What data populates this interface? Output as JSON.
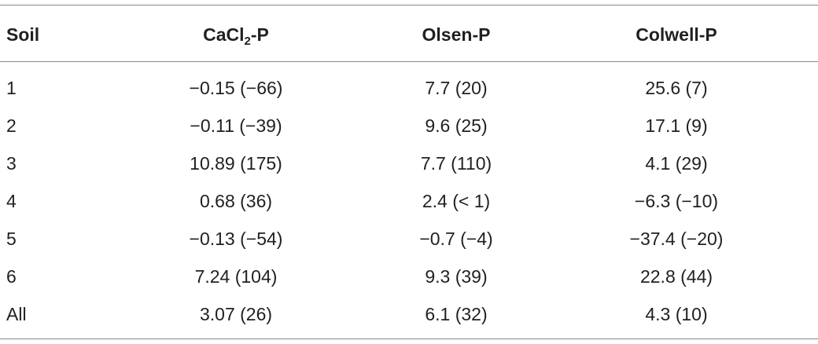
{
  "table": {
    "header": [
      "Soil",
      {
        "base": "CaCl",
        "sub": "2",
        "rest": "-P"
      },
      "Olsen-P",
      "Colwell-P"
    ],
    "rows": [
      [
        "1",
        "−0.15 (−66)",
        "7.7 (20)",
        "25.6 (7)"
      ],
      [
        "2",
        "−0.11 (−39)",
        "9.6 (25)",
        "17.1 (9)"
      ],
      [
        "3",
        "10.89 (175)",
        "7.7 (110)",
        "4.1 (29)"
      ],
      [
        "4",
        "0.68 (36)",
        "2.4 (< 1)",
        "−6.3 (−10)"
      ],
      [
        "5",
        "−0.13 (−54)",
        "−0.7 (−4)",
        "−37.4 (−20)"
      ],
      [
        "6",
        "7.24 (104)",
        "9.3 (39)",
        "22.8 (44)"
      ],
      [
        "All",
        "3.07 (26)",
        "6.1 (32)",
        "4.3 (10)"
      ]
    ]
  }
}
